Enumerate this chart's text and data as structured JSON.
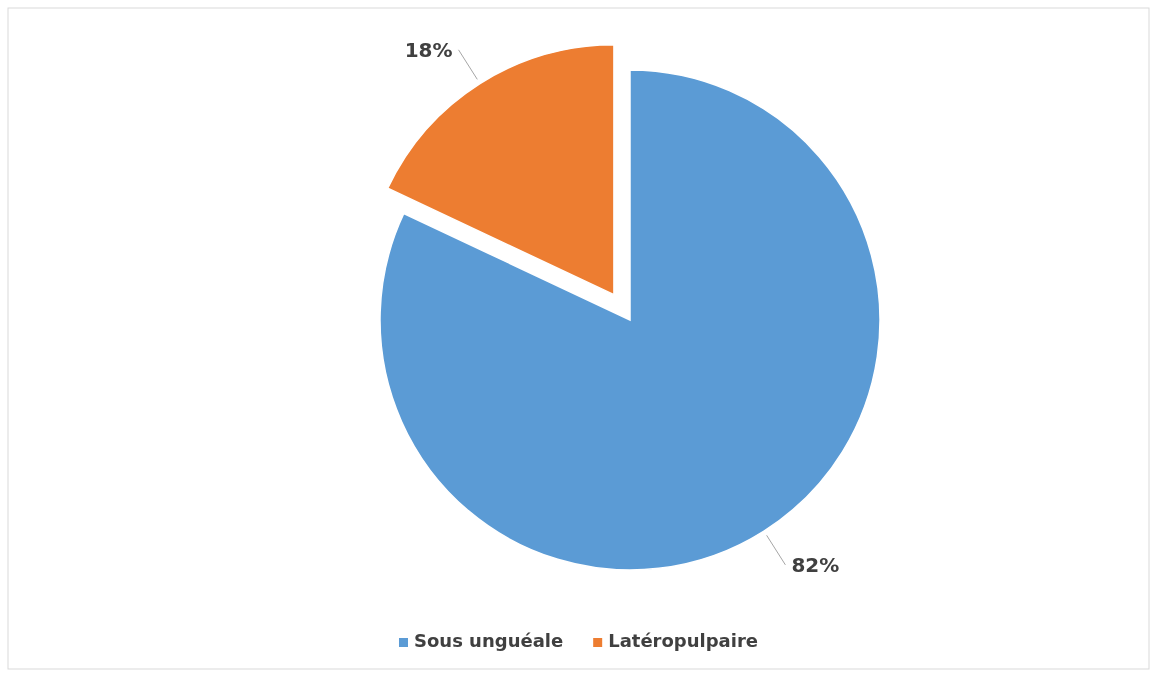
{
  "chart_data": {
    "type": "pie",
    "categories": [
      "Sous unguéale",
      "Latéropulpaire"
    ],
    "values": [
      82,
      18
    ],
    "colors": [
      "#5b9bd5",
      "#ed7d31"
    ],
    "value_labels": [
      "82%",
      "18%"
    ],
    "legend": "bottom"
  }
}
